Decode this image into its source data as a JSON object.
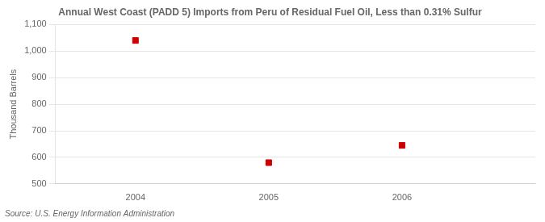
{
  "chart_data": {
    "type": "scatter",
    "title": "Annual West Coast (PADD 5) Imports from Peru of Residual Fuel Oil, Less than 0.31% Sulfur",
    "y_label": "Thousand Barrels",
    "annotations": [
      "Source: U.S. Energy Information Administration"
    ],
    "x": [
      2004,
      2005,
      2006
    ],
    "values": [
      1040,
      580,
      645
    ],
    "color": "#cc0000",
    "marker": "square",
    "xlim": [
      2003.4,
      2007.0
    ],
    "xticks": [
      2004,
      2005,
      2006
    ],
    "ylim": [
      500,
      1100
    ],
    "yticks": [
      500,
      600,
      700,
      800,
      900,
      {
        "value": 1000,
        "label": "1,000"
      },
      {
        "value": 1100,
        "label": "1,100"
      }
    ],
    "grid": "y"
  }
}
